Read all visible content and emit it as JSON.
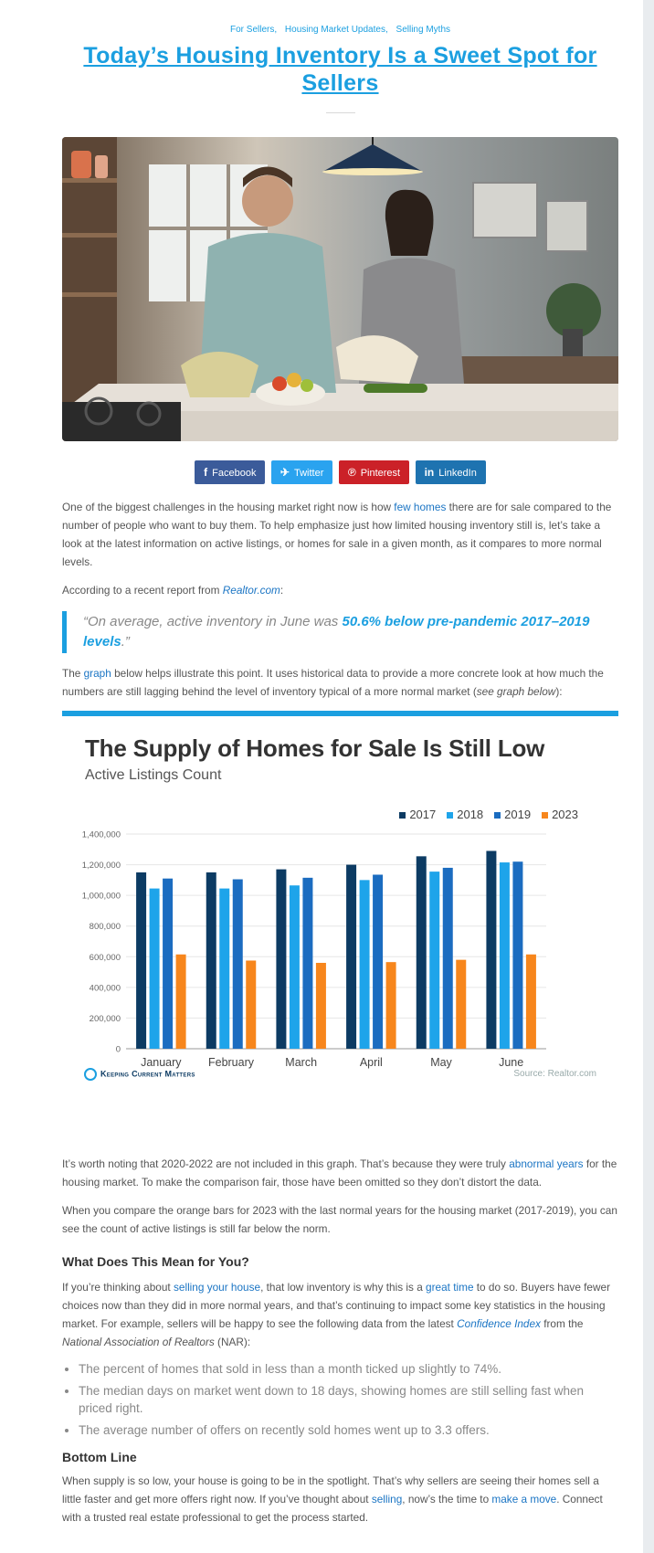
{
  "categories": [
    "For Sellers,",
    "Housing Market Updates,",
    "Selling Myths"
  ],
  "title": "Today’s Housing Inventory Is a Sweet Spot for Sellers",
  "share": {
    "facebook": "Facebook",
    "twitter": "Twitter",
    "pinterest": "Pinterest",
    "linkedin": "LinkedIn"
  },
  "p1": {
    "a": "One of the biggest challenges in the housing market right now is how ",
    "link": "few homes",
    "b": " there are for sale compared to the number of people who want to buy them. To help emphasize just how limited housing inventory still is, let’s take a look at the latest information on active listings, or homes for sale in a given month, as it compares to more normal levels."
  },
  "p2": {
    "a": "According to a recent report from ",
    "link": "Realtor.com",
    "b": ":"
  },
  "quote": {
    "a": "“On average, active inventory in June was ",
    "bold": "50.6% below pre-pandemic 2017–2019 levels",
    "b": ".”"
  },
  "p3": {
    "a": "The ",
    "link": "graph",
    "b": " below helps illustrate this point. It uses historical data to provide a more concrete look at how much the numbers are still lagging behind the level of inventory typical of a more normal market (",
    "em": "see graph below",
    "c": "):"
  },
  "chart_data": {
    "type": "bar",
    "title": "The Supply of Homes for Sale Is Still Low",
    "subtitle": "Active Listings Count",
    "categories": [
      "January",
      "February",
      "March",
      "April",
      "May",
      "June"
    ],
    "series": [
      {
        "name": "2017",
        "color": "#0c3b63",
        "values": [
          1150000,
          1150000,
          1170000,
          1200000,
          1255000,
          1290000
        ]
      },
      {
        "name": "2018",
        "color": "#1ea4ea",
        "values": [
          1045000,
          1045000,
          1065000,
          1100000,
          1155000,
          1215000
        ]
      },
      {
        "name": "2019",
        "color": "#1b6cc0",
        "values": [
          1110000,
          1105000,
          1115000,
          1135000,
          1180000,
          1220000
        ]
      },
      {
        "name": "2023",
        "color": "#f7861c",
        "values": [
          615000,
          575000,
          560000,
          565000,
          580000,
          615000
        ]
      }
    ],
    "yticks": [
      "1,400,000",
      "1,200,000",
      "1,000,000",
      "800,000",
      "600,000",
      "400,000",
      "200,000",
      "0"
    ],
    "ylim": [
      0,
      1400000
    ],
    "legend_position": "top-right",
    "branding": "Keeping Current Matters",
    "source": "Source: Realtor.com"
  },
  "p4": {
    "a": "It’s worth noting that 2020-2022 are not included in this graph. That’s because they were truly ",
    "link": "abnormal years",
    "b": " for the housing market. To make the comparison fair, those have been omitted so they don’t distort the data."
  },
  "p5": "When you compare the orange bars for 2023 with the last normal years for the housing market (2017-2019), you can see the count of active listings is still far below the norm.",
  "h_meaning": "What Does This Mean for You?",
  "p6": {
    "a": "If you’re thinking about ",
    "link1": "selling your house",
    "b": ", that low inventory is why this is a ",
    "link2": "great time",
    "c": " to do so. Buyers have fewer choices now than they did in more normal years, and that’s continuing to impact some key statistics in the housing market. For example, sellers will be happy to see the following data from the latest ",
    "link3": "Confidence Index",
    "d": " from the ",
    "em": "National Association of Realtors",
    "e": " (NAR):"
  },
  "bullets": [
    "The percent of homes that sold in less than a month ticked up slightly to 74%.",
    "The median days on market went down to 18 days, showing homes are still selling fast when priced right.",
    "The average number of offers on recently sold homes went up to 3.3 offers."
  ],
  "h_bottom": "Bottom Line",
  "p7": {
    "a": "When supply is so low, your house is going to be in the spotlight. That’s why sellers are seeing their homes sell a little faster and get more offers right now. If you’ve thought about ",
    "link1": "selling",
    "b": ", now’s the time to ",
    "link2": "make a move",
    "c": ". Connect with a trusted real estate professional to get the process started."
  }
}
